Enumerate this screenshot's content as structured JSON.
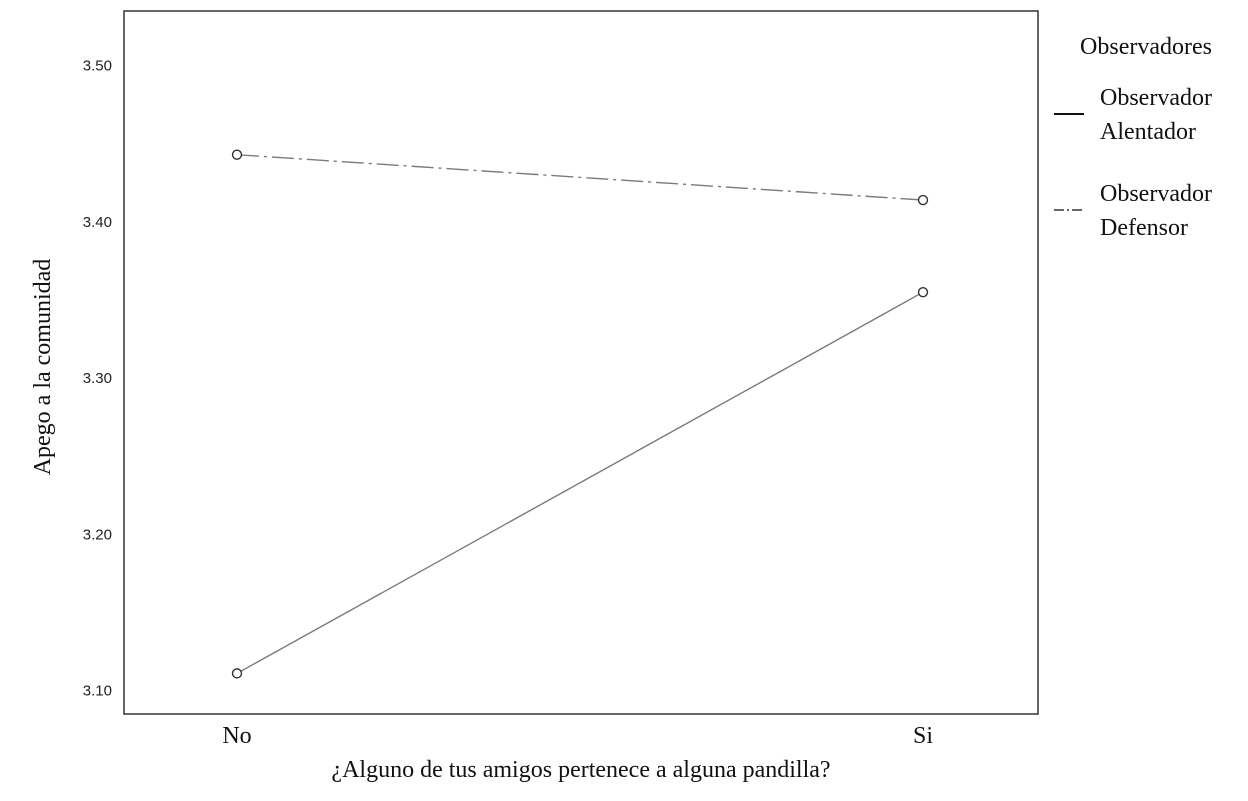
{
  "chart_data": {
    "type": "line",
    "categories": [
      "No",
      "Si"
    ],
    "series": [
      {
        "name": "Observador Alentador",
        "values": [
          3.111,
          3.355
        ],
        "style": "solid",
        "color": "#7a7a7a"
      },
      {
        "name": "Observador Defensor",
        "values": [
          3.443,
          3.414
        ],
        "style": "dash-dot",
        "color": "#7a7a7a"
      }
    ],
    "title": "",
    "xlabel": "¿Alguno de tus amigos pertenece a alguna pandilla?",
    "ylabel": "Apego a la comunidad",
    "ylim": [
      3.085,
      3.535
    ],
    "yticks": [
      "3.10",
      "3.20",
      "3.30",
      "3.40",
      "3.50"
    ],
    "grid": false,
    "legend": {
      "title": "Observadores",
      "position": "right",
      "entries": [
        {
          "line1": "Observador",
          "line2": "Alentador",
          "style": "solid"
        },
        {
          "line1": "Observador",
          "line2": "Defensor",
          "style": "dash-dot"
        }
      ]
    }
  }
}
